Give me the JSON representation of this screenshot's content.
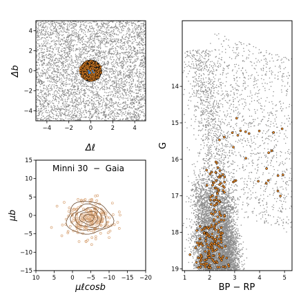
{
  "chart_data": [
    {
      "id": "spatial",
      "type": "scatter",
      "xlabel": "Δℓ",
      "ylabel": "Δb",
      "xlim": [
        -5,
        5
      ],
      "ylim": [
        -5,
        5
      ],
      "xticks": [
        -4,
        -2,
        0,
        2,
        4
      ],
      "yticks": [
        -4,
        -2,
        0,
        2,
        4
      ],
      "field_color": "#8c8c8c",
      "member_color": "#e8892a",
      "member_edge": "#000000",
      "cluster_center": [
        0,
        0
      ],
      "cluster_radius": 1.0,
      "grid": false
    },
    {
      "id": "proper-motion",
      "type": "scatter",
      "title": "Minni 30  −  Gaia",
      "xlabel": "μℓcosb",
      "ylabel": "μb",
      "xlim": [
        10,
        -20
      ],
      "ylim": [
        -15,
        15
      ],
      "xticks": [
        10,
        5,
        0,
        -5,
        -10,
        -15,
        -20
      ],
      "yticks": [
        -15,
        -10,
        -5,
        0,
        5,
        10,
        15
      ],
      "point_color": "#d9a679",
      "contour_color": "#6b4a2e",
      "center": [
        -4.5,
        -0.7
      ],
      "grid": false
    },
    {
      "id": "cmd",
      "type": "scatter",
      "xlabel": "BP − RP",
      "ylabel": "G",
      "xlim": [
        0.9,
        5.3
      ],
      "ylim": [
        19.05,
        12.2
      ],
      "xticks": [
        1,
        2,
        3,
        4,
        5
      ],
      "yticks": [
        14,
        15,
        16,
        17,
        18,
        19
      ],
      "field_color": "#8c8c8c",
      "member_color": "#e8892a",
      "member_edge": "#000000",
      "grid": false
    }
  ]
}
